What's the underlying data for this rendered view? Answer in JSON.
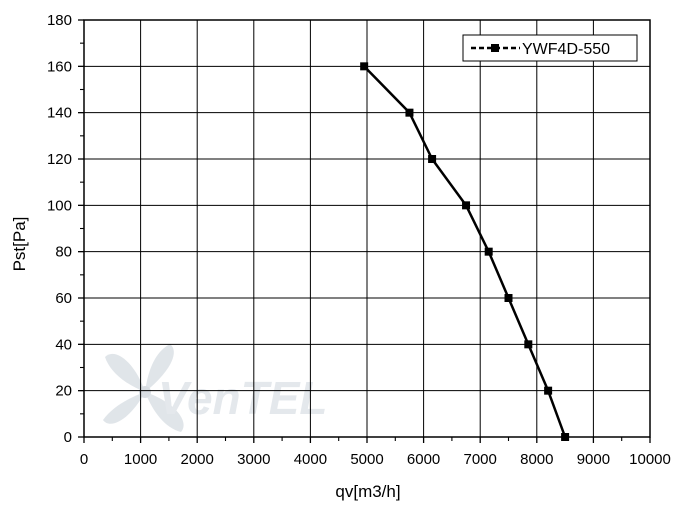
{
  "chart_data": {
    "type": "line",
    "xlabel": "qv[m3/h]",
    "ylabel": "Pst[Pa]",
    "xlim": [
      0,
      10000
    ],
    "ylim": [
      0,
      180
    ],
    "x_ticks": [
      0,
      1000,
      2000,
      3000,
      4000,
      5000,
      6000,
      7000,
      8000,
      9000,
      10000
    ],
    "y_ticks": [
      0,
      20,
      40,
      60,
      80,
      100,
      120,
      140,
      160,
      180
    ],
    "grid": true,
    "legend_position": "top-right",
    "series": [
      {
        "name": "YWF4D-550",
        "color": "#000000",
        "marker": "square",
        "x": [
          4950,
          5750,
          6150,
          6750,
          7150,
          7500,
          7850,
          8200,
          8500
        ],
        "y": [
          160,
          140,
          120,
          100,
          80,
          60,
          40,
          20,
          0
        ]
      }
    ]
  },
  "watermark": {
    "text": "VenTEL",
    "color": "#cfd6de"
  }
}
